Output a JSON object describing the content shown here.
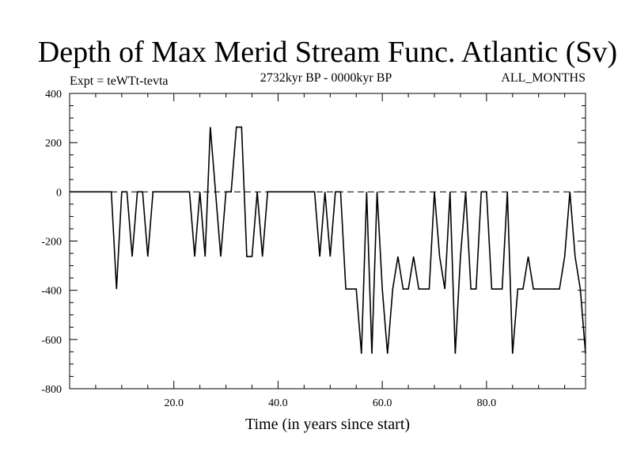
{
  "chart_data": {
    "type": "line",
    "title": "Depth of Max Merid Stream Func. Atlantic (Sv)",
    "subtitle_left": "Expt = teWTt-tevta",
    "subtitle_center": "2732kyr BP - 0000kyr BP",
    "subtitle_right": "ALL_MONTHS",
    "xlabel": "Time (in years since start)",
    "ylabel": "",
    "xlim": [
      0,
      99
    ],
    "ylim": [
      -800,
      400
    ],
    "xticks": [
      20,
      40,
      60,
      80
    ],
    "xtick_labels": [
      "20.0",
      "40.0",
      "60.0",
      "80.0"
    ],
    "yticks": [
      400,
      200,
      0,
      -200,
      -400,
      -600,
      -800
    ],
    "ytick_labels": [
      "400",
      "200",
      "0",
      "-200",
      "-400",
      "-600",
      "-800"
    ],
    "reference_line": {
      "y": 0,
      "style": "dashed"
    },
    "grid": false,
    "series": [
      {
        "x": [
          0,
          1,
          2,
          3,
          4,
          5,
          6,
          7,
          8,
          9,
          10,
          11,
          12,
          13,
          14,
          15,
          16,
          17,
          18,
          19,
          20,
          21,
          22,
          23,
          24,
          25,
          26,
          27,
          28,
          29,
          30,
          31,
          32,
          33,
          34,
          35,
          36,
          37,
          38,
          39,
          40,
          41,
          42,
          43,
          44,
          45,
          46,
          47,
          48,
          49,
          50,
          51,
          52,
          53,
          54,
          55,
          56,
          57,
          58,
          59,
          60,
          61,
          62,
          63,
          64,
          65,
          66,
          67,
          68,
          69,
          70,
          71,
          72,
          73,
          74,
          75,
          76,
          77,
          78,
          79,
          80,
          81,
          82,
          83,
          84,
          85,
          86,
          87,
          88,
          89,
          90,
          91,
          92,
          93,
          94,
          95,
          96,
          97,
          98,
          99
        ],
        "values": [
          0,
          0,
          0,
          0,
          0,
          0,
          0,
          0,
          0,
          -395,
          0,
          0,
          -263,
          0,
          0,
          -263,
          0,
          0,
          0,
          0,
          0,
          0,
          0,
          0,
          -263,
          0,
          -263,
          263,
          0,
          -263,
          0,
          0,
          263,
          263,
          -263,
          -263,
          0,
          -263,
          0,
          0,
          0,
          0,
          0,
          0,
          0,
          0,
          0,
          0,
          -263,
          0,
          -263,
          0,
          0,
          -395,
          -395,
          -395,
          -658,
          0,
          -658,
          0,
          -395,
          -658,
          -395,
          -263,
          -395,
          -395,
          -263,
          -395,
          -395,
          -395,
          0,
          -263,
          -395,
          0,
          -658,
          -263,
          0,
          -395,
          -395,
          0,
          0,
          -395,
          -395,
          -395,
          0,
          -658,
          -395,
          -395,
          -263,
          -395,
          -395,
          -395,
          -395,
          -395,
          -395,
          -263,
          0,
          -263,
          -395,
          -658
        ]
      }
    ]
  }
}
